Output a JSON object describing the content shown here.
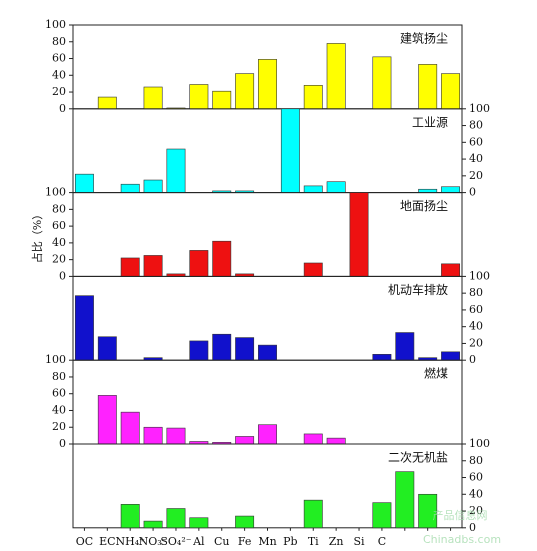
{
  "chart_data": {
    "type": "bar",
    "ylabel": "占比（%）",
    "categories": [
      "OC",
      "EC",
      "NH₄⁺",
      "NO₃⁻",
      "SO₄²⁻",
      "Al",
      "Cu",
      "Fe",
      "Mn",
      "Pb",
      "Ti",
      "Zn",
      "Si",
      "C",
      null,
      null,
      null
    ],
    "panels": [
      {
        "title": "建筑扬尘",
        "color": "#ffff00",
        "axis": "left",
        "ylim": [
          0,
          100
        ],
        "yticks": [
          0,
          20,
          40,
          60,
          80,
          100
        ],
        "values": [
          0,
          14,
          0,
          26,
          1,
          29,
          21,
          42,
          59,
          0,
          28,
          78,
          0,
          62,
          0,
          53,
          42
        ]
      },
      {
        "title": "工业源",
        "color": "#00ffff",
        "axis": "right",
        "ylim": [
          0,
          100
        ],
        "yticks": [
          0,
          20,
          40,
          60,
          80,
          100
        ],
        "values": [
          22,
          0,
          10,
          15,
          52,
          0,
          2,
          2,
          0,
          100,
          8,
          13,
          0,
          0,
          0,
          4,
          7
        ]
      },
      {
        "title": "地面扬尘",
        "color": "#ee1111",
        "axis": "left",
        "ylim": [
          0,
          100
        ],
        "yticks": [
          0,
          20,
          40,
          60,
          80,
          100
        ],
        "values": [
          0,
          0,
          22,
          25,
          3,
          31,
          42,
          3,
          0,
          0,
          16,
          0,
          100,
          0,
          0,
          0,
          15
        ]
      },
      {
        "title": "机动车排放",
        "color": "#1111cc",
        "axis": "right",
        "ylim": [
          0,
          100
        ],
        "yticks": [
          0,
          20,
          40,
          60,
          80,
          100
        ],
        "values": [
          77,
          28,
          0,
          3,
          0,
          23,
          31,
          27,
          18,
          0,
          0,
          0,
          0,
          7,
          33,
          3,
          10
        ]
      },
      {
        "title": "燃煤",
        "color": "#ff22ff",
        "axis": "left",
        "ylim": [
          0,
          100
        ],
        "yticks": [
          0,
          20,
          40,
          60,
          80,
          100
        ],
        "values": [
          0,
          58,
          38,
          20,
          19,
          3,
          2,
          9,
          23,
          0,
          12,
          7,
          0,
          0,
          0,
          0,
          0
        ]
      },
      {
        "title": "二次无机盐",
        "color": "#22ee22",
        "axis": "right",
        "ylim": [
          0,
          100
        ],
        "yticks": [
          0,
          20,
          40,
          60,
          80,
          100
        ],
        "values": [
          0,
          0,
          28,
          8,
          23,
          12,
          0,
          14,
          0,
          0,
          33,
          0,
          0,
          30,
          67,
          40,
          0
        ]
      }
    ],
    "watermark": [
      "产品信息网",
      "Chinadbs.com"
    ]
  }
}
